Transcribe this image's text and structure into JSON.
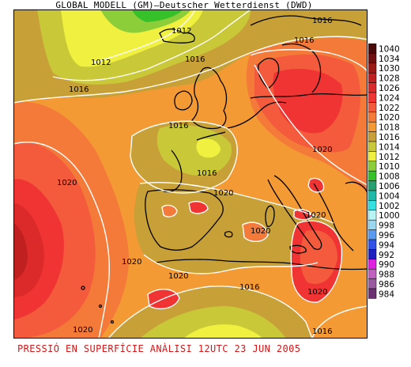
{
  "header": {
    "title": "GLOBAL MODELL (GM)—Deutscher Wetterdienst (DWD)"
  },
  "caption": "PRESSIÓ EN SUPERFÍCIE    ANÀLISI 12UTC 23 JUN 2005",
  "legend": {
    "levels": [
      {
        "value": "1040",
        "color": "#4a0a0a"
      },
      {
        "value": "1034",
        "color": "#6e1010"
      },
      {
        "value": "1030",
        "color": "#9a1a16"
      },
      {
        "value": "1028",
        "color": "#c02020"
      },
      {
        "value": "1026",
        "color": "#dc2a2a"
      },
      {
        "value": "1024",
        "color": "#f03434"
      },
      {
        "value": "1022",
        "color": "#f45a3c"
      },
      {
        "value": "1020",
        "color": "#f47a3a"
      },
      {
        "value": "1018",
        "color": "#f49a34"
      },
      {
        "value": "1016",
        "color": "#c8a038"
      },
      {
        "value": "1014",
        "color": "#c8c838"
      },
      {
        "value": "1012",
        "color": "#f0f040"
      },
      {
        "value": "1010",
        "color": "#8ccd3a"
      },
      {
        "value": "1008",
        "color": "#36c02a"
      },
      {
        "value": "1006",
        "color": "#26a070"
      },
      {
        "value": "1004",
        "color": "#20b8a8"
      },
      {
        "value": "1002",
        "color": "#34e0e0"
      },
      {
        "value": "1000",
        "color": "#b8f4f4"
      },
      {
        "value": "998",
        "color": "#9ad8f0"
      },
      {
        "value": "996",
        "color": "#5a9af0"
      },
      {
        "value": "994",
        "color": "#3050e8"
      },
      {
        "value": "992",
        "color": "#2020c0"
      },
      {
        "value": "990",
        "color": "#e020e0"
      },
      {
        "value": "988",
        "color": "#c060c0"
      },
      {
        "value": "986",
        "color": "#9a5aa0"
      },
      {
        "value": "984",
        "color": "#6a3070"
      }
    ]
  },
  "isobar_labels": [
    {
      "name": "isobar-label-1012-a",
      "text": "1012"
    },
    {
      "name": "isobar-label-1012-b",
      "text": "1012"
    },
    {
      "name": "isobar-label-1016-top",
      "text": "1016"
    },
    {
      "name": "isobar-label-1016-nw",
      "text": "1016"
    },
    {
      "name": "isobar-label-1016-ne",
      "text": "1016"
    },
    {
      "name": "isobar-label-1016-britain",
      "text": "1016"
    },
    {
      "name": "isobar-label-1016-france",
      "text": "1016"
    },
    {
      "name": "isobar-label-1016-bottom",
      "text": "1016"
    },
    {
      "name": "isobar-label-1016-se",
      "text": "1016"
    },
    {
      "name": "isobar-label-1016-sw",
      "text": "1016"
    },
    {
      "name": "isobar-label-1020-atlantic",
      "text": "1020"
    },
    {
      "name": "isobar-label-1020-iberia",
      "text": "1020"
    },
    {
      "name": "isobar-label-1020-med",
      "text": "1020"
    },
    {
      "name": "isobar-label-1020-atl-s",
      "text": "1020"
    },
    {
      "name": "isobar-label-1020-nafrica",
      "text": "1020"
    },
    {
      "name": "isobar-label-1020-alps",
      "text": "1020"
    },
    {
      "name": "isobar-label-1020-italy",
      "text": "1020"
    },
    {
      "name": "isobar-label-1020-aegean",
      "text": "1020"
    },
    {
      "name": "isobar-label-1020-bottomleft",
      "text": "1020"
    }
  ],
  "colors": {
    "base": "#f49a34",
    "caption": "#d01818",
    "isobar": "#ffffff",
    "coast": "#000000"
  }
}
